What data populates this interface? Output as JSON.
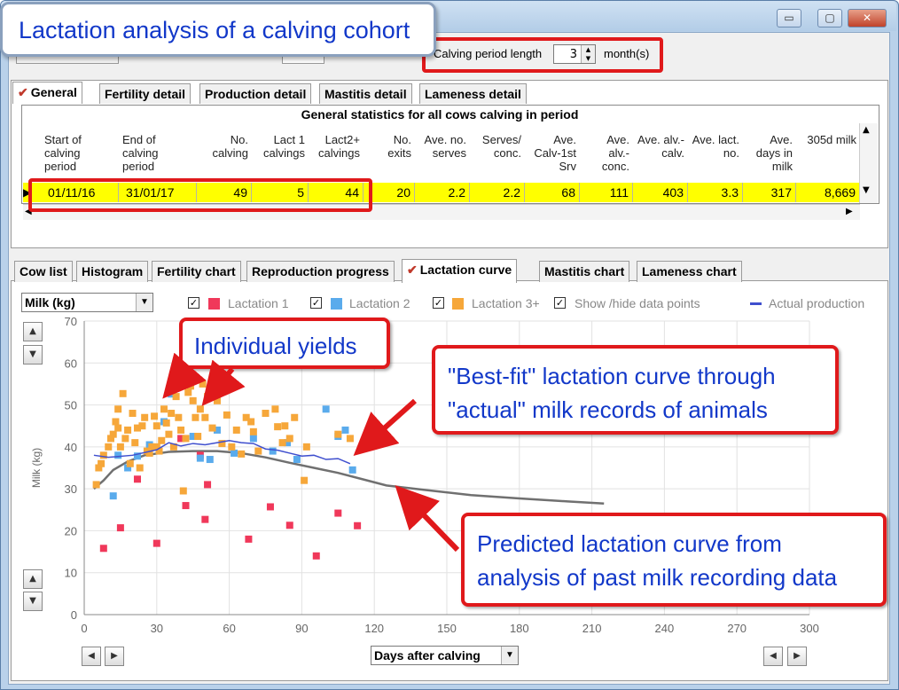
{
  "window": {
    "title": "Lactation analysis of a calving cohort",
    "buttons": {
      "minimize": "▭",
      "restore": "▢",
      "close": "✕"
    }
  },
  "controls": {
    "calving_period_label": "Calving period length",
    "calving_period_value": "3",
    "calving_period_unit": "month(s)"
  },
  "top_tabs": [
    "General",
    "Fertility detail",
    "Production detail",
    "Mastitis detail",
    "Lameness detail"
  ],
  "grid": {
    "caption": "General statistics for all cows calving in period",
    "headers": [
      "Start of calving period",
      "End of calving period",
      "No. calving",
      "Lact 1 calvings",
      "Lact2+ calvings",
      "No. exits",
      "Ave. no. serves",
      "Serves/ conc.",
      "Ave. Calv-1st Srv",
      "Ave. alv.-conc.",
      "Ave. alv.-calv.",
      "Ave. lact. no.",
      "Ave. days in milk",
      "305d milk"
    ],
    "row": [
      "01/11/16",
      "31/01/17",
      "49",
      "5",
      "44",
      "20",
      "2.2",
      "2.2",
      "68",
      "111",
      "403",
      "3.3",
      "317",
      "8,669"
    ]
  },
  "chart_tabs": [
    "Cow list",
    "Histogram",
    "Fertility chart",
    "Reproduction progress",
    "Lactation curve",
    "Mastitis chart",
    "Lameness chart"
  ],
  "chart_controls": {
    "measure": "Milk (kg)",
    "x_selector": "Days after calving",
    "legend": [
      "Lactation 1",
      "Lactation 2",
      "Lactation 3+",
      "Show /hide data points",
      "Actual production"
    ]
  },
  "callouts": {
    "individual": "Individual yields",
    "bestfit_line1": "\"Best-fit\" lactation curve through",
    "bestfit_line2": "\"actual\" milk records of animals",
    "predicted_line1": "Predicted lactation curve from",
    "predicted_line2": "analysis of past milk recording data"
  },
  "colors": {
    "lact1": "#f0385a",
    "lact2": "#5aabec",
    "lact3": "#f6a73a",
    "actual": "#3f4fce",
    "predicted": "#707070",
    "highlight_row": "#ffff00",
    "callout_border": "#e0191b",
    "callout_text": "#1238c9"
  },
  "chart_data": {
    "type": "scatter",
    "ylabel": "Milk (kg)",
    "xlim": [
      0,
      300
    ],
    "ylim": [
      0,
      70
    ],
    "xticks": [
      0,
      30,
      60,
      90,
      120,
      150,
      180,
      210,
      240,
      270,
      300
    ],
    "yticks": [
      0,
      10,
      20,
      30,
      40,
      50,
      60,
      70
    ],
    "series": [
      {
        "name": "Lactation 1",
        "color": "#f0385a",
        "points": [
          [
            8,
            15.8
          ],
          [
            15,
            20.7
          ],
          [
            22,
            32.3
          ],
          [
            30,
            17
          ],
          [
            42,
            26
          ],
          [
            50,
            22.7
          ],
          [
            51,
            31
          ],
          [
            68,
            18
          ],
          [
            77,
            25.7
          ],
          [
            85,
            21.3
          ],
          [
            96,
            14
          ],
          [
            105,
            24.2
          ],
          [
            113,
            21.2
          ],
          [
            48,
            38
          ],
          [
            40,
            42
          ]
        ]
      },
      {
        "name": "Lactation 2",
        "color": "#5aabec",
        "points": [
          [
            12,
            28.3
          ],
          [
            18,
            35
          ],
          [
            27,
            40.5
          ],
          [
            36,
            52.6
          ],
          [
            45,
            42.5
          ],
          [
            48,
            37.3
          ],
          [
            52,
            37
          ],
          [
            62,
            38.5
          ],
          [
            70,
            42
          ],
          [
            78,
            39
          ],
          [
            84,
            41
          ],
          [
            88,
            37
          ],
          [
            100,
            49
          ],
          [
            105,
            42.5
          ],
          [
            108,
            44
          ],
          [
            111,
            34.5
          ],
          [
            14,
            38
          ],
          [
            22,
            37.8
          ],
          [
            33,
            46
          ],
          [
            55,
            44
          ]
        ]
      },
      {
        "name": "Lactation 3+",
        "color": "#f6a73a",
        "points": [
          [
            5,
            31
          ],
          [
            6,
            35
          ],
          [
            7,
            36
          ],
          [
            8,
            38
          ],
          [
            10,
            40
          ],
          [
            11,
            42
          ],
          [
            12,
            43
          ],
          [
            13,
            46
          ],
          [
            14,
            49
          ],
          [
            14,
            44.5
          ],
          [
            15,
            40
          ],
          [
            16,
            52.7
          ],
          [
            17,
            42
          ],
          [
            18,
            44
          ],
          [
            19,
            36
          ],
          [
            20,
            48
          ],
          [
            21,
            41
          ],
          [
            22,
            44.5
          ],
          [
            23,
            35
          ],
          [
            24,
            45
          ],
          [
            25,
            47
          ],
          [
            26,
            39
          ],
          [
            27,
            38.5
          ],
          [
            28,
            40
          ],
          [
            29,
            47.3
          ],
          [
            30,
            45
          ],
          [
            30,
            40
          ],
          [
            31,
            39
          ],
          [
            32,
            41.5
          ],
          [
            33,
            49
          ],
          [
            34,
            45.7
          ],
          [
            35,
            43
          ],
          [
            36,
            48
          ],
          [
            37,
            40
          ],
          [
            38,
            52
          ],
          [
            39,
            47
          ],
          [
            40,
            44
          ],
          [
            41,
            29.5
          ],
          [
            42,
            42
          ],
          [
            43,
            53
          ],
          [
            44,
            54.5
          ],
          [
            45,
            51
          ],
          [
            46,
            47
          ],
          [
            47,
            42.5
          ],
          [
            48,
            49
          ],
          [
            49,
            55
          ],
          [
            50,
            47
          ],
          [
            51,
            52
          ],
          [
            53,
            44.5
          ],
          [
            55,
            51
          ],
          [
            57,
            40.8
          ],
          [
            59,
            47.6
          ],
          [
            61,
            40
          ],
          [
            63,
            44
          ],
          [
            65,
            38.3
          ],
          [
            67,
            47
          ],
          [
            69,
            46
          ],
          [
            70,
            43.6
          ],
          [
            72,
            39
          ],
          [
            75,
            48
          ],
          [
            79,
            49
          ],
          [
            80,
            44.8
          ],
          [
            82,
            41
          ],
          [
            83,
            45
          ],
          [
            85,
            42
          ],
          [
            87,
            47
          ],
          [
            91,
            32
          ],
          [
            92,
            40
          ],
          [
            105,
            43
          ],
          [
            110,
            42
          ]
        ]
      }
    ],
    "lines": [
      {
        "name": "Actual production",
        "color": "#3f4fce",
        "points": [
          [
            4,
            38
          ],
          [
            10,
            37.5
          ],
          [
            20,
            38
          ],
          [
            30,
            39.3
          ],
          [
            35,
            41
          ],
          [
            40,
            40.2
          ],
          [
            45,
            40.8
          ],
          [
            50,
            40.5
          ],
          [
            55,
            41
          ],
          [
            60,
            41.5
          ],
          [
            65,
            41
          ],
          [
            70,
            40.8
          ],
          [
            75,
            39.5
          ],
          [
            80,
            39.2
          ],
          [
            85,
            38.5
          ],
          [
            90,
            37.8
          ],
          [
            95,
            38
          ],
          [
            100,
            37
          ],
          [
            105,
            37.2
          ],
          [
            110,
            36
          ]
        ]
      },
      {
        "name": "Predicted",
        "color": "#707070",
        "points": [
          [
            4,
            30
          ],
          [
            8,
            32
          ],
          [
            12,
            34.5
          ],
          [
            18,
            36.5
          ],
          [
            25,
            38
          ],
          [
            35,
            38.8
          ],
          [
            45,
            39
          ],
          [
            55,
            39
          ],
          [
            65,
            38.5
          ],
          [
            75,
            37.5
          ],
          [
            85,
            36.2
          ],
          [
            95,
            35
          ],
          [
            105,
            33.8
          ],
          [
            115,
            32.3
          ],
          [
            125,
            30.8
          ],
          [
            140,
            29.8
          ],
          [
            160,
            28.5
          ],
          [
            180,
            27.7
          ],
          [
            200,
            27
          ],
          [
            215,
            26.5
          ]
        ]
      }
    ]
  }
}
